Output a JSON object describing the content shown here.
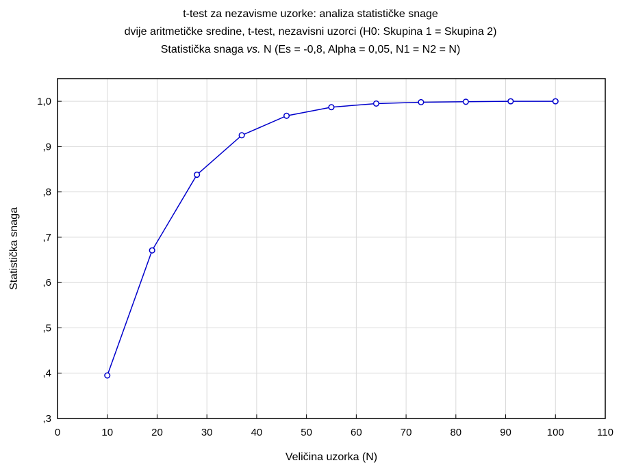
{
  "chart_data": {
    "type": "line",
    "title": "t-test za nezavisme uzorke: analiza statističke snage",
    "subtitle": "dvije aritmetičke sredine, t-test, nezavisni uzorci (H0:  Skupina 1 = Skupina 2)",
    "subtitle2": {
      "prefix": "Statistička snaga ",
      "italic": "vs.",
      "suffix": " N (Es = -0,8, Alpha = 0,05, N1 = N2 = N)"
    },
    "xlabel": "Veličina uzorka (N)",
    "ylabel": "Statistička snaga",
    "xlim": [
      0,
      110
    ],
    "ylim": [
      0.3,
      1.05
    ],
    "xticks": [
      0,
      10,
      20,
      30,
      40,
      50,
      60,
      70,
      80,
      90,
      100,
      110
    ],
    "xtick_labels": [
      "0",
      "10",
      "20",
      "30",
      "40",
      "50",
      "60",
      "70",
      "80",
      "90",
      "100",
      "110"
    ],
    "yticks": [
      0.3,
      0.4,
      0.5,
      0.6,
      0.7,
      0.8,
      0.9,
      1.0
    ],
    "ytick_labels": [
      ",3",
      ",4",
      ",5",
      ",6",
      ",7",
      ",8",
      ",9",
      "1,0"
    ],
    "grid": true,
    "series": [
      {
        "color": "#0000cc",
        "marker": "circle",
        "x": [
          10,
          19,
          28,
          37,
          46,
          55,
          64,
          73,
          82,
          91,
          100
        ],
        "y": [
          0.395,
          0.671,
          0.838,
          0.925,
          0.968,
          0.987,
          0.995,
          0.998,
          0.999,
          1.0,
          1.0
        ]
      }
    ]
  }
}
